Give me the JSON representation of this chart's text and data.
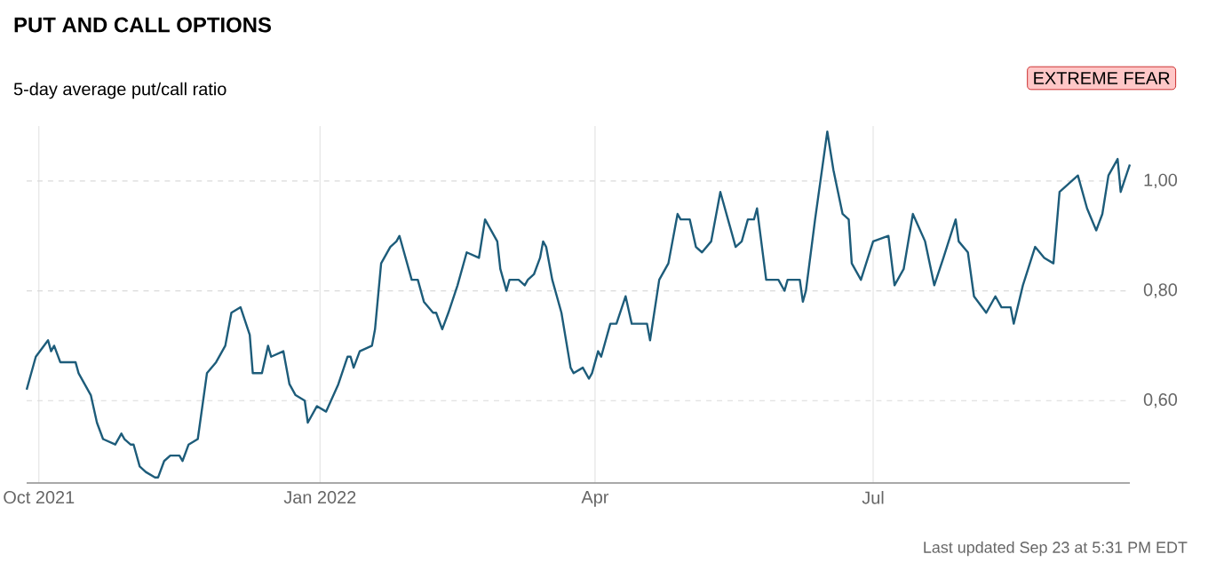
{
  "chart_data": {
    "type": "line",
    "title": "PUT AND CALL OPTIONS",
    "subtitle": "5-day average put/call ratio",
    "annotations": [
      "EXTREME FEAR",
      "Last updated Sep 23 at 5:31 PM EDT"
    ],
    "xlim": [
      "2021-09-27",
      "2022-09-23"
    ],
    "xticks": [
      {
        "value": "2021-10-01",
        "label": "Oct 2021"
      },
      {
        "value": "2022-01-01",
        "label": "Jan 2022"
      },
      {
        "value": "2022-04-01",
        "label": "Apr"
      },
      {
        "value": "2022-07-01",
        "label": "Jul"
      }
    ],
    "ylim": [
      0.45,
      1.1
    ],
    "yticks": [
      {
        "value": 0.6,
        "label": "0,60"
      },
      {
        "value": 0.8,
        "label": "0,80"
      },
      {
        "value": 1.0,
        "label": "1,00"
      }
    ],
    "grid": true,
    "series": [
      {
        "color": "#1d5c7a",
        "x": [
          "2021-09-27",
          "2021-09-28",
          "2021-09-30",
          "2021-10-04",
          "2021-10-05",
          "2021-10-06",
          "2021-10-08",
          "2021-10-12",
          "2021-10-13",
          "2021-10-14",
          "2021-10-18",
          "2021-10-20",
          "2021-10-22",
          "2021-10-26",
          "2021-10-28",
          "2021-10-29",
          "2021-10-31",
          "2021-11-01",
          "2021-11-03",
          "2021-11-05",
          "2021-11-08",
          "2021-11-09",
          "2021-11-11",
          "2021-11-13",
          "2021-11-16",
          "2021-11-17",
          "2021-11-19",
          "2021-11-22",
          "2021-11-25",
          "2021-11-28",
          "2021-12-01",
          "2021-12-03",
          "2021-12-06",
          "2021-12-09",
          "2021-12-10",
          "2021-12-13",
          "2021-12-15",
          "2021-12-16",
          "2021-12-20",
          "2021-12-22",
          "2021-12-24",
          "2021-12-27",
          "2021-12-28",
          "2021-12-31",
          "2022-01-03",
          "2022-01-07",
          "2022-01-10",
          "2022-01-11",
          "2022-01-12",
          "2022-01-14",
          "2022-01-18",
          "2022-01-19",
          "2022-01-21",
          "2022-01-24",
          "2022-01-26",
          "2022-01-27",
          "2022-01-31",
          "2022-02-02",
          "2022-02-04",
          "2022-02-07",
          "2022-02-08",
          "2022-02-10",
          "2022-02-12",
          "2022-02-15",
          "2022-02-18",
          "2022-02-22",
          "2022-02-24",
          "2022-02-28",
          "2022-03-01",
          "2022-03-03",
          "2022-03-04",
          "2022-03-07",
          "2022-03-09",
          "2022-03-10",
          "2022-03-12",
          "2022-03-14",
          "2022-03-15",
          "2022-03-16",
          "2022-03-18",
          "2022-03-21",
          "2022-03-24",
          "2022-03-25",
          "2022-03-28",
          "2022-03-30",
          "2022-03-31",
          "2022-04-02",
          "2022-04-03",
          "2022-04-06",
          "2022-04-08",
          "2022-04-11",
          "2022-04-13",
          "2022-04-18",
          "2022-04-19",
          "2022-04-22",
          "2022-04-25",
          "2022-04-28",
          "2022-04-29",
          "2022-05-02",
          "2022-05-04",
          "2022-05-06",
          "2022-05-09",
          "2022-05-12",
          "2022-05-15",
          "2022-05-17",
          "2022-05-19",
          "2022-05-21",
          "2022-05-23",
          "2022-05-24",
          "2022-05-27",
          "2022-05-31",
          "2022-06-02",
          "2022-06-03",
          "2022-06-07",
          "2022-06-08",
          "2022-06-09",
          "2022-06-12",
          "2022-06-16",
          "2022-06-18",
          "2022-06-21",
          "2022-06-23",
          "2022-06-24",
          "2022-06-27",
          "2022-07-01",
          "2022-07-06",
          "2022-07-08",
          "2022-07-11",
          "2022-07-14",
          "2022-07-18",
          "2022-07-21",
          "2022-07-24",
          "2022-07-28",
          "2022-07-29",
          "2022-08-01",
          "2022-08-03",
          "2022-08-07",
          "2022-08-10",
          "2022-08-12",
          "2022-08-15",
          "2022-08-16",
          "2022-08-19",
          "2022-08-23",
          "2022-08-26",
          "2022-08-29",
          "2022-08-31",
          "2022-09-06",
          "2022-09-09",
          "2022-09-12",
          "2022-09-14",
          "2022-09-16",
          "2022-09-19",
          "2022-09-20",
          "2022-09-23"
        ],
        "values": [
          0.62,
          0.64,
          0.68,
          0.71,
          0.69,
          0.7,
          0.67,
          0.67,
          0.67,
          0.65,
          0.61,
          0.56,
          0.53,
          0.52,
          0.54,
          0.53,
          0.52,
          0.52,
          0.48,
          0.47,
          0.46,
          0.46,
          0.49,
          0.5,
          0.5,
          0.49,
          0.52,
          0.53,
          0.65,
          0.67,
          0.7,
          0.76,
          0.77,
          0.72,
          0.65,
          0.65,
          0.7,
          0.68,
          0.69,
          0.63,
          0.61,
          0.6,
          0.56,
          0.59,
          0.58,
          0.63,
          0.68,
          0.68,
          0.66,
          0.69,
          0.7,
          0.73,
          0.85,
          0.88,
          0.89,
          0.9,
          0.82,
          0.82,
          0.78,
          0.76,
          0.76,
          0.73,
          0.76,
          0.81,
          0.87,
          0.86,
          0.93,
          0.89,
          0.84,
          0.8,
          0.82,
          0.82,
          0.81,
          0.82,
          0.83,
          0.86,
          0.89,
          0.88,
          0.82,
          0.76,
          0.66,
          0.65,
          0.66,
          0.64,
          0.65,
          0.69,
          0.68,
          0.74,
          0.74,
          0.79,
          0.74,
          0.74,
          0.71,
          0.82,
          0.85,
          0.94,
          0.93,
          0.93,
          0.88,
          0.87,
          0.89,
          0.98,
          0.92,
          0.88,
          0.89,
          0.93,
          0.93,
          0.95,
          0.82,
          0.82,
          0.8,
          0.82,
          0.82,
          0.78,
          0.8,
          0.93,
          1.09,
          1.02,
          0.94,
          0.93,
          0.85,
          0.82,
          0.89,
          0.9,
          0.81,
          0.84,
          0.94,
          0.89,
          0.81,
          0.86,
          0.93,
          0.89,
          0.87,
          0.79,
          0.76,
          0.79,
          0.77,
          0.77,
          0.74,
          0.81,
          0.88,
          0.86,
          0.85,
          0.98,
          1.01,
          0.95,
          0.91,
          0.94,
          1.01,
          1.04,
          0.98,
          1.03
        ]
      }
    ]
  }
}
